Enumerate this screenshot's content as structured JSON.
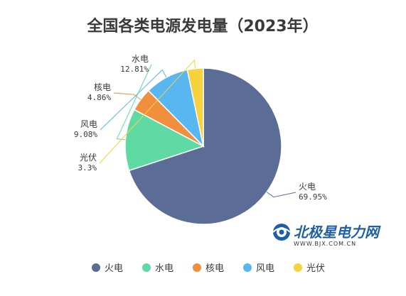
{
  "chart_data": {
    "type": "pie",
    "title": "全国各类电源发电量（2023年）",
    "slices": [
      {
        "name": "火电",
        "value": 69.95,
        "label": "69.95%",
        "color": "#5b6c96"
      },
      {
        "name": "水电",
        "value": 12.81,
        "label": "12.81%",
        "color": "#5fdaa4"
      },
      {
        "name": "核电",
        "value": 4.86,
        "label": "4.86%",
        "color": "#f08f3e"
      },
      {
        "name": "风电",
        "value": 9.08,
        "label": "9.08%",
        "color": "#58b6f0"
      },
      {
        "name": "光伏",
        "value": 3.3,
        "label": "3.3%",
        "color": "#f6d23d"
      }
    ],
    "legend": {
      "placement": "bottom",
      "items": [
        "火电",
        "水电",
        "核电",
        "风电",
        "光伏"
      ]
    }
  },
  "watermark": {
    "brand": "北极星电力网",
    "url": "WWW.BJX.COM.CN"
  }
}
